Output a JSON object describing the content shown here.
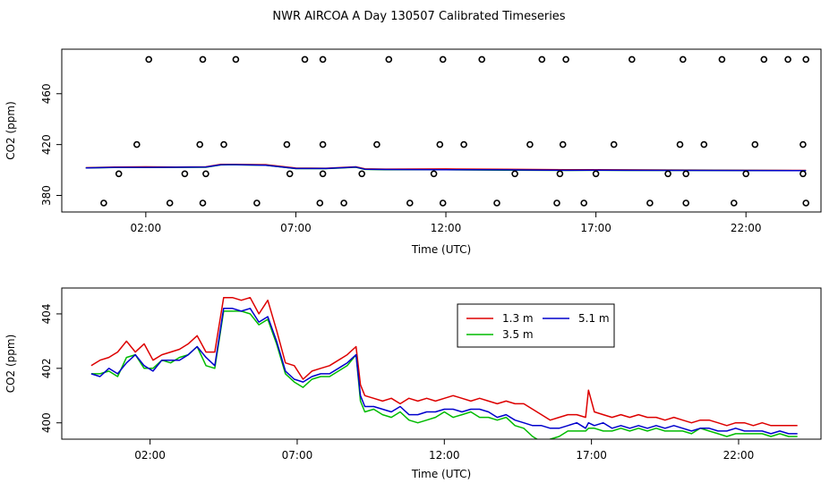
{
  "figure": {
    "title": "NWR AIRCOA A  Day 130507  Calibrated Timeseries"
  },
  "chart_data": [
    {
      "type": "scatter",
      "xlabel": "Time (UTC)",
      "ylabel": "CO2 (ppm)",
      "xlim": [
        -0.8,
        24.5
      ],
      "ylim": [
        367,
        495
      ],
      "x_ticks": [
        2,
        7,
        12,
        17,
        22
      ],
      "x_tick_labels": [
        "02:00",
        "07:00",
        "12:00",
        "17:00",
        "22:00"
      ],
      "y_ticks": [
        380,
        420,
        460
      ],
      "y_tick_labels": [
        "380",
        "420",
        "460"
      ],
      "grid": false,
      "outlier_points": {
        "x": [
          0.6,
          1.1,
          1.7,
          2.1,
          2.8,
          3.3,
          3.8,
          3.9,
          3.9,
          4.0,
          4.6,
          5.0,
          5.7,
          6.7,
          6.8,
          7.3,
          7.8,
          7.9,
          7.9,
          7.9,
          8.6,
          9.2,
          9.7,
          10.1,
          10.8,
          11.6,
          11.8,
          11.9,
          11.9,
          12.6,
          13.2,
          13.7,
          14.3,
          14.8,
          15.2,
          15.7,
          15.8,
          15.9,
          16.0,
          16.6,
          17.0,
          17.6,
          18.2,
          18.8,
          19.4,
          19.8,
          19.9,
          20.0,
          20.0,
          20.6,
          21.2,
          21.6,
          22.0,
          22.3,
          22.6,
          23.4,
          23.9,
          23.9,
          24.0,
          24.0
        ],
        "y": [
          374,
          397,
          420,
          487,
          374,
          397,
          420,
          487,
          374,
          397,
          420,
          487,
          374,
          420,
          397,
          487,
          374,
          397,
          420,
          487,
          374,
          397,
          420,
          487,
          374,
          397,
          420,
          487,
          374,
          420,
          487,
          374,
          397,
          420,
          487,
          374,
          397,
          420,
          487,
          374,
          397,
          420,
          487,
          374,
          397,
          420,
          487,
          374,
          397,
          420,
          487,
          374,
          397,
          420,
          487,
          487,
          420,
          397,
          374,
          487
        ]
      },
      "series": [
        {
          "name": "1.3 m",
          "color": "#dd0000",
          "x": [
            0.0,
            1.0,
            2.0,
            3.0,
            4.0,
            4.5,
            5.0,
            6.0,
            7.0,
            8.0,
            9.0,
            9.3,
            10.0,
            12.0,
            14.0,
            16.0,
            17.0,
            18.0,
            20.0,
            22.0,
            24.0
          ],
          "y": [
            401.8,
            402.4,
            402.5,
            402.4,
            402.5,
            404.4,
            404.5,
            404.2,
            401.5,
            401.4,
            402.5,
            401.0,
            400.7,
            400.8,
            400.6,
            400.3,
            400.3,
            400.1,
            400.0,
            399.8,
            399.7
          ]
        },
        {
          "name": "3.5 m",
          "color": "#00bb00",
          "x": [
            0.0,
            1.0,
            2.0,
            3.0,
            4.0,
            4.5,
            5.0,
            6.0,
            7.0,
            8.0,
            9.0,
            9.3,
            10.0,
            12.0,
            14.0,
            16.0,
            17.0,
            18.0,
            20.0,
            22.0,
            24.0
          ],
          "y": [
            401.6,
            402.0,
            402.0,
            402.1,
            402.2,
            404.0,
            404.1,
            403.7,
            401.1,
            401.1,
            402.2,
            400.5,
            400.3,
            400.2,
            399.9,
            399.7,
            399.8,
            399.7,
            399.7,
            399.6,
            399.5
          ]
        },
        {
          "name": "5.1 m",
          "color": "#0000cc",
          "x": [
            0.0,
            1.0,
            2.0,
            3.0,
            4.0,
            4.5,
            5.0,
            6.0,
            7.0,
            8.0,
            9.0,
            9.3,
            10.0,
            12.0,
            14.0,
            16.0,
            17.0,
            18.0,
            20.0,
            22.0,
            24.0
          ],
          "y": [
            401.7,
            402.1,
            402.1,
            402.2,
            402.3,
            404.1,
            404.2,
            403.8,
            401.2,
            401.2,
            402.3,
            400.6,
            400.4,
            400.3,
            400.1,
            399.8,
            399.9,
            399.8,
            399.7,
            399.6,
            399.5
          ]
        }
      ]
    },
    {
      "type": "line",
      "xlabel": "Time (UTC)",
      "ylabel": "CO2 (ppm)",
      "xlim": [
        -1.0,
        24.8
      ],
      "ylim": [
        399.4,
        404.95
      ],
      "x_ticks": [
        2,
        7,
        12,
        17,
        22
      ],
      "x_tick_labels": [
        "02:00",
        "07:00",
        "12:00",
        "17:00",
        "22:00"
      ],
      "y_ticks": [
        400,
        402,
        404
      ],
      "y_tick_labels": [
        "400",
        "402",
        "404"
      ],
      "grid": false,
      "legend": {
        "placement": "top-center",
        "columns": 2
      },
      "series": [
        {
          "name": "1.3 m",
          "color": "#dd0000",
          "x": [
            0.0,
            0.3,
            0.6,
            0.9,
            1.2,
            1.5,
            1.8,
            2.1,
            2.4,
            2.7,
            3.0,
            3.3,
            3.6,
            3.9,
            4.2,
            4.5,
            4.8,
            5.1,
            5.4,
            5.7,
            6.0,
            6.3,
            6.6,
            6.9,
            7.2,
            7.5,
            7.8,
            8.1,
            8.4,
            8.7,
            9.0,
            9.15,
            9.3,
            9.6,
            9.9,
            10.2,
            10.5,
            10.8,
            11.1,
            11.4,
            11.7,
            12.0,
            12.3,
            12.6,
            12.9,
            13.2,
            13.5,
            13.8,
            14.1,
            14.4,
            14.7,
            15.0,
            15.3,
            15.6,
            15.9,
            16.2,
            16.5,
            16.8,
            16.9,
            17.1,
            17.4,
            17.7,
            18.0,
            18.3,
            18.6,
            18.9,
            19.2,
            19.5,
            19.8,
            20.1,
            20.4,
            20.7,
            21.0,
            21.3,
            21.6,
            21.9,
            22.2,
            22.5,
            22.8,
            23.1,
            23.4,
            23.7,
            24.0
          ],
          "y": [
            402.1,
            402.3,
            402.4,
            402.6,
            403.0,
            402.6,
            402.9,
            402.3,
            402.5,
            402.6,
            402.7,
            402.9,
            403.2,
            402.6,
            402.6,
            404.6,
            404.6,
            404.5,
            404.6,
            404.0,
            404.5,
            403.4,
            402.2,
            402.1,
            401.6,
            401.9,
            402.0,
            402.1,
            402.3,
            402.5,
            402.8,
            401.4,
            401.0,
            400.9,
            400.8,
            400.9,
            400.7,
            400.9,
            400.8,
            400.9,
            400.8,
            400.9,
            401.0,
            400.9,
            400.8,
            400.9,
            400.8,
            400.7,
            400.8,
            400.7,
            400.7,
            400.5,
            400.3,
            400.1,
            400.2,
            400.3,
            400.3,
            400.2,
            401.2,
            400.4,
            400.3,
            400.2,
            400.3,
            400.2,
            400.3,
            400.2,
            400.2,
            400.1,
            400.2,
            400.1,
            400.0,
            400.1,
            400.1,
            400.0,
            399.9,
            400.0,
            400.0,
            399.9,
            400.0,
            399.9,
            399.9,
            399.9,
            399.9
          ]
        },
        {
          "name": "3.5 m",
          "color": "#00bb00",
          "x": [
            0.0,
            0.3,
            0.6,
            0.9,
            1.2,
            1.5,
            1.8,
            2.1,
            2.4,
            2.7,
            3.0,
            3.3,
            3.6,
            3.9,
            4.2,
            4.5,
            4.8,
            5.1,
            5.4,
            5.7,
            6.0,
            6.3,
            6.6,
            6.9,
            7.2,
            7.5,
            7.8,
            8.1,
            8.4,
            8.7,
            9.0,
            9.15,
            9.3,
            9.6,
            9.9,
            10.2,
            10.5,
            10.8,
            11.1,
            11.4,
            11.7,
            12.0,
            12.3,
            12.6,
            12.9,
            13.2,
            13.5,
            13.8,
            14.1,
            14.4,
            14.7,
            15.0,
            15.3,
            15.6,
            15.9,
            16.2,
            16.5,
            16.8,
            16.9,
            17.1,
            17.4,
            17.7,
            18.0,
            18.3,
            18.6,
            18.9,
            19.2,
            19.5,
            19.8,
            20.1,
            20.4,
            20.7,
            21.0,
            21.3,
            21.6,
            21.9,
            22.2,
            22.5,
            22.8,
            23.1,
            23.4,
            23.7,
            24.0
          ],
          "y": [
            401.8,
            401.8,
            401.9,
            401.7,
            402.4,
            402.5,
            402.0,
            402.0,
            402.3,
            402.2,
            402.4,
            402.5,
            402.8,
            402.1,
            402.0,
            404.1,
            404.1,
            404.1,
            404.0,
            403.6,
            403.8,
            402.9,
            401.8,
            401.5,
            401.3,
            401.6,
            401.7,
            401.7,
            401.9,
            402.1,
            402.5,
            400.8,
            400.4,
            400.5,
            400.3,
            400.2,
            400.4,
            400.1,
            400.0,
            400.1,
            400.2,
            400.4,
            400.2,
            400.3,
            400.4,
            400.2,
            400.2,
            400.1,
            400.2,
            399.9,
            399.8,
            399.5,
            399.3,
            399.4,
            399.5,
            399.7,
            399.7,
            399.7,
            399.8,
            399.8,
            399.7,
            399.7,
            399.8,
            399.7,
            399.8,
            399.7,
            399.8,
            399.7,
            399.7,
            399.7,
            399.6,
            399.8,
            399.7,
            399.6,
            399.5,
            399.6,
            399.6,
            399.6,
            399.6,
            399.5,
            399.6,
            399.5,
            399.5
          ]
        },
        {
          "name": "5.1 m",
          "color": "#0000cc",
          "x": [
            0.0,
            0.3,
            0.6,
            0.9,
            1.2,
            1.5,
            1.8,
            2.1,
            2.4,
            2.7,
            3.0,
            3.3,
            3.6,
            3.9,
            4.2,
            4.5,
            4.8,
            5.1,
            5.4,
            5.7,
            6.0,
            6.3,
            6.6,
            6.9,
            7.2,
            7.5,
            7.8,
            8.1,
            8.4,
            8.7,
            9.0,
            9.15,
            9.3,
            9.6,
            9.9,
            10.2,
            10.5,
            10.8,
            11.1,
            11.4,
            11.7,
            12.0,
            12.3,
            12.6,
            12.9,
            13.2,
            13.5,
            13.8,
            14.1,
            14.4,
            14.7,
            15.0,
            15.3,
            15.6,
            15.9,
            16.2,
            16.5,
            16.8,
            16.9,
            17.1,
            17.4,
            17.7,
            18.0,
            18.3,
            18.6,
            18.9,
            19.2,
            19.5,
            19.8,
            20.1,
            20.4,
            20.7,
            21.0,
            21.3,
            21.6,
            21.9,
            22.2,
            22.5,
            22.8,
            23.1,
            23.4,
            23.7,
            24.0
          ],
          "y": [
            401.8,
            401.7,
            402.0,
            401.8,
            402.2,
            402.5,
            402.1,
            401.9,
            402.3,
            402.3,
            402.3,
            402.5,
            402.8,
            402.4,
            402.1,
            404.2,
            404.2,
            404.1,
            404.2,
            403.7,
            403.9,
            403.0,
            401.9,
            401.6,
            401.5,
            401.7,
            401.8,
            401.8,
            402.0,
            402.2,
            402.5,
            401.0,
            400.6,
            400.6,
            400.5,
            400.4,
            400.6,
            400.3,
            400.3,
            400.4,
            400.4,
            400.5,
            400.5,
            400.4,
            400.5,
            400.5,
            400.4,
            400.2,
            400.3,
            400.1,
            400.0,
            399.9,
            399.9,
            399.8,
            399.8,
            399.9,
            400.0,
            399.8,
            400.0,
            399.9,
            400.0,
            399.8,
            399.9,
            399.8,
            399.9,
            399.8,
            399.9,
            399.8,
            399.9,
            399.8,
            399.7,
            399.8,
            399.8,
            399.7,
            399.7,
            399.8,
            399.7,
            399.7,
            399.7,
            399.6,
            399.7,
            399.6,
            399.6
          ]
        }
      ]
    }
  ]
}
